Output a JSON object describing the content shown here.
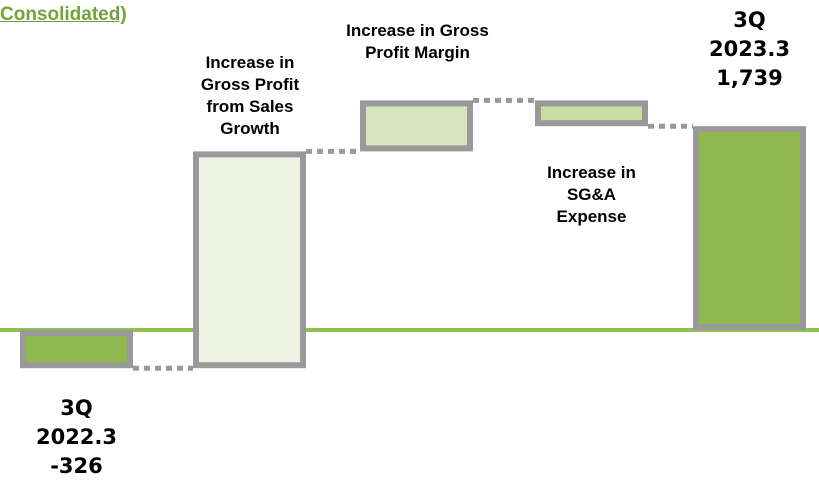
{
  "chart_data": {
    "type": "waterfall",
    "title": "Consolidated)",
    "categories": [
      "3Q 2022.3",
      "Increase in Gross Profit from Sales Growth",
      "Increase in Gross Profit Margin",
      "Increase in SG&A Expense",
      "3Q 2023.3"
    ],
    "values": [
      -326,
      1850,
      435,
      -220,
      1739
    ],
    "value_labels": [
      "-326",
      null,
      null,
      null,
      "1,739"
    ],
    "colors": [
      "#8fb84f",
      "#eef2e2",
      "#d6e5bb",
      "#c8dca3",
      "#8fb84f"
    ],
    "border_color": "#999999",
    "baseline_color": "#92c050"
  }
}
